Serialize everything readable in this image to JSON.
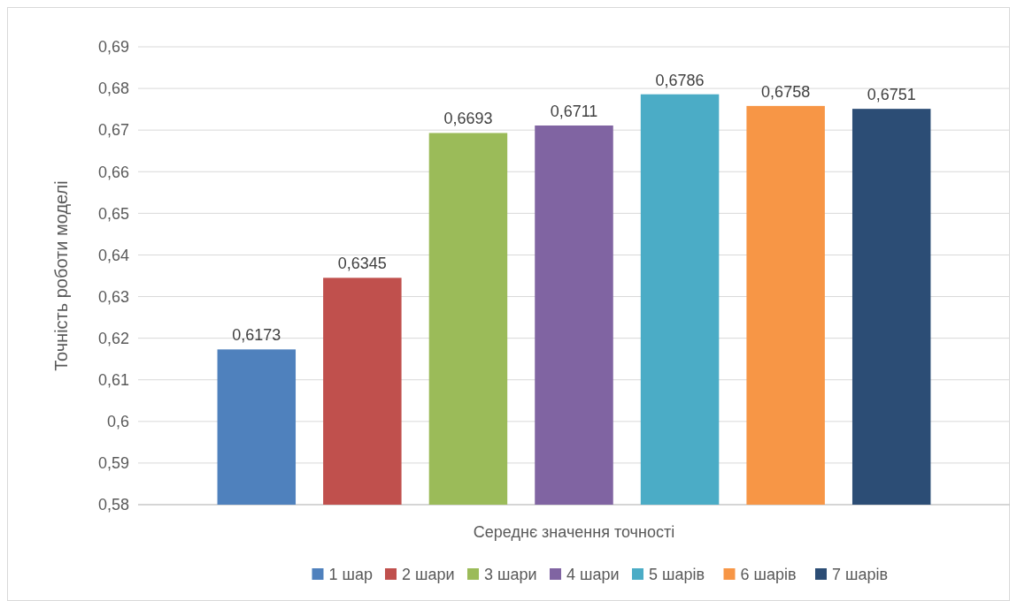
{
  "chart_data": {
    "type": "bar",
    "ylabel": "Точність роботи моделі",
    "categories": [
      "Середнє значення точності"
    ],
    "series": [
      {
        "name": "1 шар",
        "color": "#4f81bd",
        "values": [
          0.6173
        ],
        "value_labels": [
          "0,6173"
        ]
      },
      {
        "name": "2 шари",
        "color": "#c0504d",
        "values": [
          0.6345
        ],
        "value_labels": [
          "0,6345"
        ]
      },
      {
        "name": "3 шари",
        "color": "#9bbb59",
        "values": [
          0.6693
        ],
        "value_labels": [
          "0,6693"
        ]
      },
      {
        "name": "4 шари",
        "color": "#8064a2",
        "values": [
          0.6711
        ],
        "value_labels": [
          "0,6711"
        ]
      },
      {
        "name": "5 шарів",
        "color": "#4bacc6",
        "values": [
          0.6786
        ],
        "value_labels": [
          "0,6786"
        ]
      },
      {
        "name": "6 шарів",
        "color": "#f79646",
        "values": [
          0.6758
        ],
        "value_labels": [
          "0,6758"
        ]
      },
      {
        "name": "7 шарів",
        "color": "#2c4d75",
        "values": [
          0.6751
        ],
        "value_labels": [
          "0,6751"
        ]
      }
    ],
    "ylim": [
      0.58,
      0.69
    ],
    "yticks": [
      {
        "value": 0.58,
        "label": "0,58"
      },
      {
        "value": 0.59,
        "label": "0,59"
      },
      {
        "value": 0.6,
        "label": "0,6"
      },
      {
        "value": 0.61,
        "label": "0,61"
      },
      {
        "value": 0.62,
        "label": "0,62"
      },
      {
        "value": 0.63,
        "label": "0,63"
      },
      {
        "value": 0.64,
        "label": "0,64"
      },
      {
        "value": 0.65,
        "label": "0,65"
      },
      {
        "value": 0.66,
        "label": "0,66"
      },
      {
        "value": 0.67,
        "label": "0,67"
      },
      {
        "value": 0.68,
        "label": "0,68"
      },
      {
        "value": 0.69,
        "label": "0,69"
      }
    ],
    "grid": "y",
    "legend": "bottom"
  }
}
